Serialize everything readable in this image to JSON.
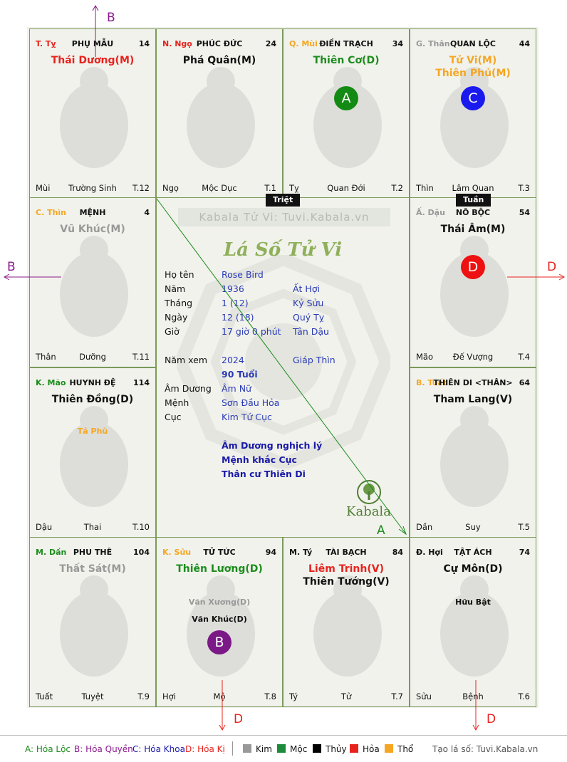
{
  "chart_name": "Lá Số Tử Vi",
  "watermark": "Kabala Tử Vi: Tuvi.Kabala.vn",
  "brand": "Kabala",
  "tags": {
    "triet": "Triệt",
    "tuan": "Tuần"
  },
  "colors": {
    "kim": "#999999",
    "moc": "#1e8b3c",
    "thuy": "#000000",
    "hoa": "#e8231e",
    "tho": "#f5a623",
    "accent_green": "#1c8c1c",
    "purple": "#8a1a8a",
    "blue": "#1a1aa8"
  },
  "cells": {
    "ty_top": {
      "can_chi": "T. Tỵ",
      "palace": "PHỤ MẪU",
      "age": "14",
      "stars": [
        "Thái Dương(M)"
      ],
      "minors": [],
      "f_left": "Mùi",
      "f_mid": "Trường Sinh",
      "f_right": "T.12"
    },
    "ngo": {
      "can_chi": "N. Ngọ",
      "palace": "PHÚC ĐỨC",
      "age": "24",
      "stars": [
        "Phá Quân(M)"
      ],
      "minors": [],
      "f_left": "Ngọ",
      "f_mid": "Mộc Dục",
      "f_right": "T.1"
    },
    "mui": {
      "can_chi": "Q. Mùi",
      "palace": "ĐIỀN TRẠCH",
      "age": "34",
      "stars": [
        "Thiên Cơ(D)"
      ],
      "minors": [],
      "badge": "A",
      "f_left": "Tỵ",
      "f_mid": "Quan Đới",
      "f_right": "T.2"
    },
    "than": {
      "can_chi": "G. Thân",
      "palace": "QUAN LỘC",
      "age": "44",
      "stars": [
        "Tử Vi(M)",
        "Thiên Phủ(M)"
      ],
      "minors": [],
      "badge": "C",
      "f_left": "Thìn",
      "f_mid": "Lâm Quan",
      "f_right": "T.3"
    },
    "thin": {
      "can_chi": "C. Thìn",
      "palace": "MỆNH",
      "age": "4",
      "stars": [
        "Vũ Khúc(M)"
      ],
      "minors": [],
      "f_left": "Thân",
      "f_mid": "Dưỡng",
      "f_right": "T.11"
    },
    "dau": {
      "can_chi": "Ấ. Dậu",
      "palace": "NÔ BỘC",
      "age": "54",
      "stars": [
        "Thái Âm(M)"
      ],
      "minors": [],
      "badge": "D",
      "f_left": "Mão",
      "f_mid": "Đế Vượng",
      "f_right": "T.4"
    },
    "mao": {
      "can_chi": "K. Mão",
      "palace": "HUYNH ĐỆ",
      "age": "114",
      "stars": [
        "Thiên Đồng(D)"
      ],
      "minors": [
        "Tả Phù"
      ],
      "f_left": "Dậu",
      "f_mid": "Thai",
      "f_right": "T.10"
    },
    "tuat": {
      "can_chi": "B. Tuất",
      "palace": "THIÊN DI <THÂN>",
      "age": "64",
      "stars": [
        "Tham Lang(V)"
      ],
      "minors": [],
      "f_left": "Dần",
      "f_mid": "Suy",
      "f_right": "T.5"
    },
    "dan": {
      "can_chi": "M. Dần",
      "palace": "PHU THÊ",
      "age": "104",
      "stars": [
        "Thất Sát(M)"
      ],
      "minors": [],
      "f_left": "Tuất",
      "f_mid": "Tuyệt",
      "f_right": "T.9"
    },
    "suu": {
      "can_chi": "K. Sửu",
      "palace": "TỬ TỨC",
      "age": "94",
      "stars": [
        "Thiên Lương(D)"
      ],
      "minors": [
        "Văn Xương(D)",
        "Văn Khúc(D)"
      ],
      "badge": "B",
      "f_left": "Hợi",
      "f_mid": "Mộ",
      "f_right": "T.8"
    },
    "ty_bot": {
      "can_chi": "M. Tý",
      "palace": "TÀI BẠCH",
      "age": "84",
      "stars": [
        "Liêm Trinh(V)",
        "Thiên Tướng(V)"
      ],
      "minors": [],
      "f_left": "Tý",
      "f_mid": "Tử",
      "f_right": "T.7"
    },
    "hoi": {
      "can_chi": "Đ. Hợi",
      "palace": "TẬT ÁCH",
      "age": "74",
      "stars": [
        "Cự Môn(D)"
      ],
      "minors": [
        "Hữu Bật"
      ],
      "f_left": "Sửu",
      "f_mid": "Bệnh",
      "f_right": "T.6"
    }
  },
  "info": {
    "ho_ten": {
      "label": "Họ tên",
      "v1": "Rose Bird",
      "v2": ""
    },
    "nam": {
      "label": "Năm",
      "v1": "1936",
      "v2": "Ất Hợi"
    },
    "thang": {
      "label": "Tháng",
      "v1": "1  (12)",
      "v2": "Kỷ Sửu"
    },
    "ngay": {
      "label": "Ngày",
      "v1": "12  (18)",
      "v2": "Quý Tỵ"
    },
    "gio": {
      "label": "Giờ",
      "v1": "17 giờ 0 phút",
      "v2": "Tân Dậu"
    },
    "nam_xem": {
      "label": "Năm xem",
      "v1": "2024",
      "v2": "Giáp Thìn"
    },
    "tuoi": {
      "label": "",
      "v1": "90 Tuổi",
      "v2": ""
    },
    "am_duong": {
      "label": "Âm Dương",
      "v1": "Âm Nữ",
      "v2": ""
    },
    "menh": {
      "label": "Mệnh",
      "v1": "Sơn Đầu Hỏa",
      "v2": ""
    },
    "cuc": {
      "label": "Cục",
      "v1": "Kim Tứ Cục",
      "v2": ""
    },
    "notes": [
      "Âm Dương nghịch lý",
      "Mệnh khắc Cục",
      "Thân cư Thiên Di"
    ]
  },
  "arrows": {
    "a": "A",
    "b": "B",
    "d": "D"
  },
  "legend": {
    "a": "A: Hóa Lộc",
    "b": "B: Hóa Quyền",
    "c": "C: Hóa Khoa",
    "d": "D: Hóa Kị",
    "kim": "Kim",
    "moc": "Mộc",
    "thuy": "Thủy",
    "hoa": "Hỏa",
    "tho": "Thổ",
    "site": "Tạo lá số: Tuvi.Kabala.vn"
  }
}
